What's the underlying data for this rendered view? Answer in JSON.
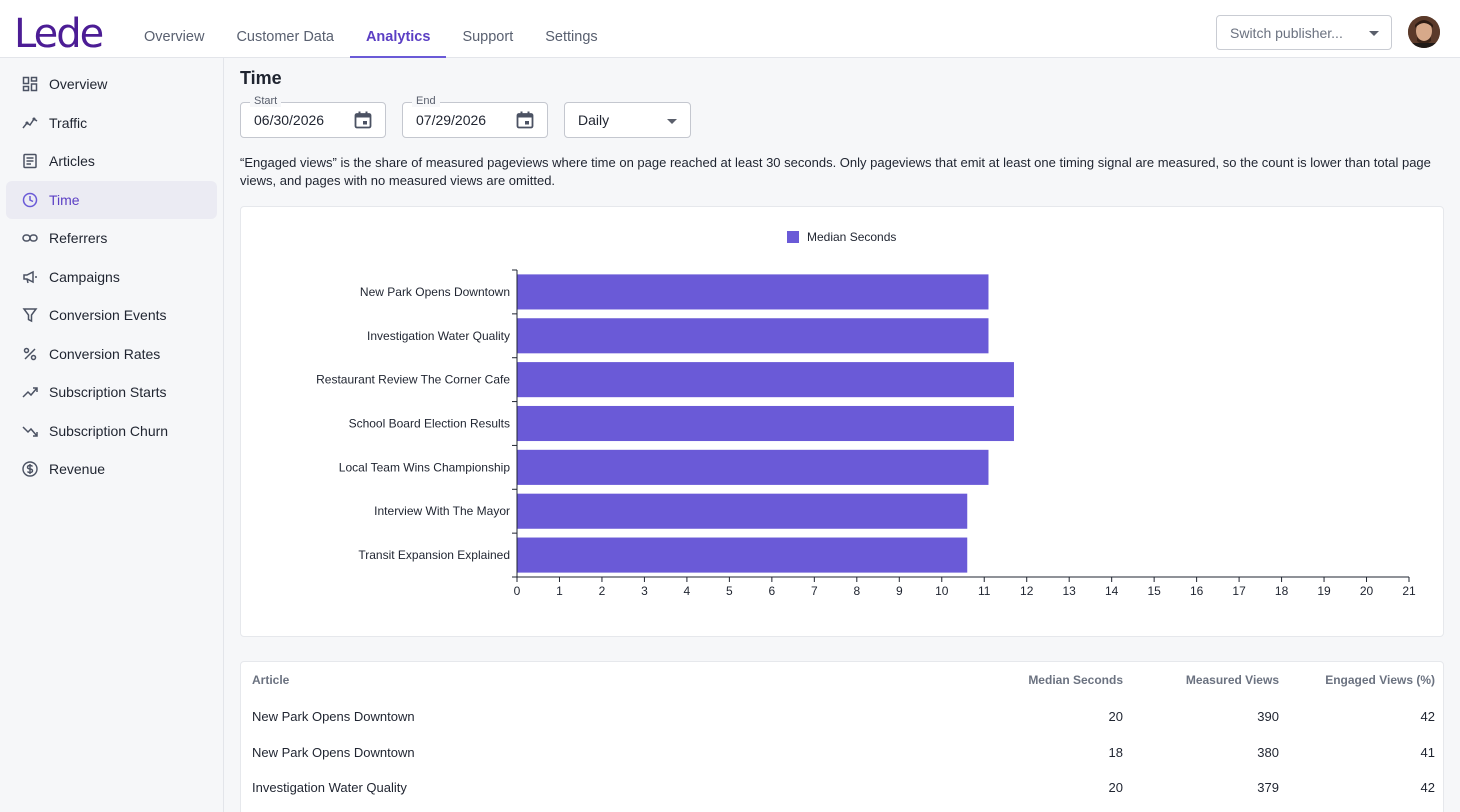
{
  "app": {
    "logo": "Lede"
  },
  "nav": {
    "tabs": [
      {
        "label": "Overview"
      },
      {
        "label": "Customer Data"
      },
      {
        "label": "Analytics",
        "active": true
      },
      {
        "label": "Support"
      },
      {
        "label": "Settings"
      }
    ]
  },
  "publisher": {
    "placeholder": "Switch publisher..."
  },
  "sidebar": {
    "items": [
      {
        "label": "Overview",
        "icon": "dashboard-icon"
      },
      {
        "label": "Traffic",
        "icon": "trend-line-icon"
      },
      {
        "label": "Articles",
        "icon": "article-icon"
      },
      {
        "label": "Time",
        "icon": "clock-icon",
        "active": true
      },
      {
        "label": "Referrers",
        "icon": "link-icon"
      },
      {
        "label": "Campaigns",
        "icon": "megaphone-icon"
      },
      {
        "label": "Conversion Events",
        "icon": "filter-icon"
      },
      {
        "label": "Conversion Rates",
        "icon": "percent-icon"
      },
      {
        "label": "Subscription Starts",
        "icon": "trending-up-icon"
      },
      {
        "label": "Subscription Churn",
        "icon": "trending-down-icon"
      },
      {
        "label": "Revenue",
        "icon": "dollar-icon"
      }
    ]
  },
  "page": {
    "title": "Time",
    "start": {
      "label": "Start",
      "value": "06/30/2026"
    },
    "end": {
      "label": "End",
      "value": "07/29/2026"
    },
    "period": {
      "value": "Daily"
    },
    "note": "“Engaged views” is the share of measured pageviews where time on page reached at least 30 seconds. Only pageviews that emit at least one timing signal are measured, so the count is lower than total page views, and pages with no measured views are omitted."
  },
  "colors": {
    "accent": "#6a5ad7",
    "brand": "#4c1d95",
    "active_text": "#5b3fc4"
  },
  "chart_data": {
    "type": "bar",
    "orientation": "horizontal",
    "categories": [
      "New Park Opens Downtown",
      "Investigation Water Quality",
      "Restaurant Review The Corner Cafe",
      "School Board Election Results",
      "Local Team Wins Championship",
      "Interview With The Mayor",
      "Transit Expansion Explained"
    ],
    "series": [
      {
        "name": "Median Seconds",
        "values": [
          11.1,
          11.1,
          11.7,
          11.7,
          11.1,
          10.6,
          10.6
        ]
      }
    ],
    "xlim": [
      0,
      21
    ],
    "xticks": [
      "0",
      "1",
      "2",
      "3",
      "4",
      "5",
      "6",
      "7",
      "8",
      "9",
      "10",
      "11",
      "12",
      "13",
      "14",
      "15",
      "16",
      "17",
      "18",
      "19",
      "20",
      "21"
    ],
    "legend": "top-center",
    "grid": false
  },
  "table": {
    "headers": [
      "Article",
      "Median Seconds",
      "Measured Views",
      "Engaged Views (%)"
    ],
    "rows": [
      [
        "New Park Opens Downtown",
        "20",
        "390",
        "42"
      ],
      [
        "New Park Opens Downtown",
        "18",
        "380",
        "41"
      ],
      [
        "Investigation Water Quality",
        "20",
        "379",
        "42"
      ]
    ]
  }
}
